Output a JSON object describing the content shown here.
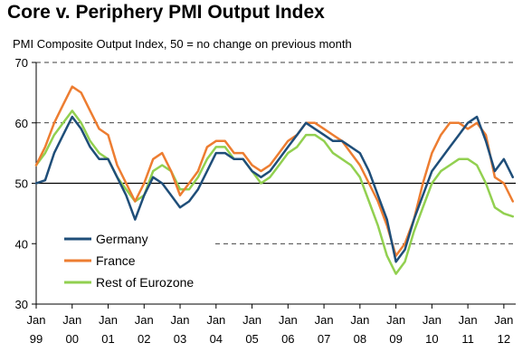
{
  "title": "Core v. Periphery PMI Output Index",
  "subtitle": "PMI Composite Output Index, 50 = no change on previous month",
  "chart_data": {
    "type": "line",
    "title": "Core v. Periphery PMI Output Index",
    "subtitle": "PMI Composite Output Index, 50 = no change on previous month",
    "xlabel": "",
    "ylabel": "",
    "xlim": [
      1999.0,
      2012.33
    ],
    "ylim": [
      30,
      70
    ],
    "yticks": [
      30,
      40,
      50,
      60,
      70
    ],
    "xticks": [
      {
        "month": "Jan",
        "year": "99",
        "value": 1999
      },
      {
        "month": "Jan",
        "year": "00",
        "value": 2000
      },
      {
        "month": "Jan",
        "year": "01",
        "value": 2001
      },
      {
        "month": "Jan",
        "year": "02",
        "value": 2002
      },
      {
        "month": "Jan",
        "year": "03",
        "value": 2003
      },
      {
        "month": "Jan",
        "year": "04",
        "value": 2004
      },
      {
        "month": "Jan",
        "year": "05",
        "value": 2005
      },
      {
        "month": "Jan",
        "year": "06",
        "value": 2006
      },
      {
        "month": "Jan",
        "year": "07",
        "value": 2007
      },
      {
        "month": "Jan",
        "year": "08",
        "value": 2008
      },
      {
        "month": "Jan",
        "year": "09",
        "value": 2009
      },
      {
        "month": "Jan",
        "year": "10",
        "value": 2010
      },
      {
        "month": "Jan",
        "year": "11",
        "value": 2011
      },
      {
        "month": "Jan",
        "year": "12",
        "value": 2012
      }
    ],
    "reference_line": 50,
    "grid": "dashed at 40, 60, 70",
    "legend_position": "bottom-left",
    "x": [
      1999.0,
      1999.25,
      1999.5,
      1999.75,
      2000.0,
      2000.25,
      2000.5,
      2000.75,
      2001.0,
      2001.25,
      2001.5,
      2001.75,
      2002.0,
      2002.25,
      2002.5,
      2002.75,
      2003.0,
      2003.25,
      2003.5,
      2003.75,
      2004.0,
      2004.25,
      2004.5,
      2004.75,
      2005.0,
      2005.25,
      2005.5,
      2005.75,
      2006.0,
      2006.25,
      2006.5,
      2006.75,
      2007.0,
      2007.25,
      2007.5,
      2007.75,
      2008.0,
      2008.25,
      2008.5,
      2008.75,
      2009.0,
      2009.25,
      2009.5,
      2009.75,
      2010.0,
      2010.25,
      2010.5,
      2010.75,
      2011.0,
      2011.25,
      2011.5,
      2011.75,
      2012.0,
      2012.25
    ],
    "series": [
      {
        "name": "Germany",
        "color": "#1f4e79",
        "values": [
          50,
          50.5,
          55,
          58,
          61,
          59,
          56,
          54,
          54,
          51,
          48,
          44,
          48,
          51,
          50,
          48,
          46,
          47,
          49,
          52,
          55,
          55,
          54,
          54,
          52,
          51,
          52,
          54,
          56,
          58,
          60,
          59,
          58,
          57,
          57,
          56,
          55,
          52,
          48,
          44,
          37,
          39,
          44,
          48,
          52,
          54,
          56,
          58,
          60,
          61,
          57,
          52,
          54,
          51
        ]
      },
      {
        "name": "France",
        "color": "#ed7d31",
        "values": [
          53,
          56,
          60,
          63,
          66,
          65,
          62,
          59,
          58,
          53,
          50,
          47,
          50,
          54,
          55,
          52,
          48,
          50,
          52,
          56,
          57,
          57,
          55,
          55,
          53,
          52,
          53,
          55,
          57,
          58,
          60,
          60,
          59,
          58,
          57,
          55,
          53,
          50,
          47,
          43,
          38,
          40,
          44,
          50,
          55,
          58,
          60,
          60,
          59,
          60,
          58,
          51,
          50,
          47
        ]
      },
      {
        "name": "Rest of Eurozone",
        "color": "#92d050",
        "values": [
          53,
          55,
          58,
          60,
          62,
          60,
          57,
          55,
          54,
          51,
          49,
          47,
          48,
          52,
          53,
          52,
          49,
          49,
          51,
          54,
          56,
          56,
          54,
          54,
          52,
          50,
          51,
          53,
          55,
          56,
          58,
          58,
          57,
          55,
          54,
          53,
          51,
          47,
          43,
          38,
          35,
          37,
          42,
          46,
          50,
          52,
          53,
          54,
          54,
          53,
          50,
          46,
          45,
          44.5
        ]
      }
    ]
  }
}
